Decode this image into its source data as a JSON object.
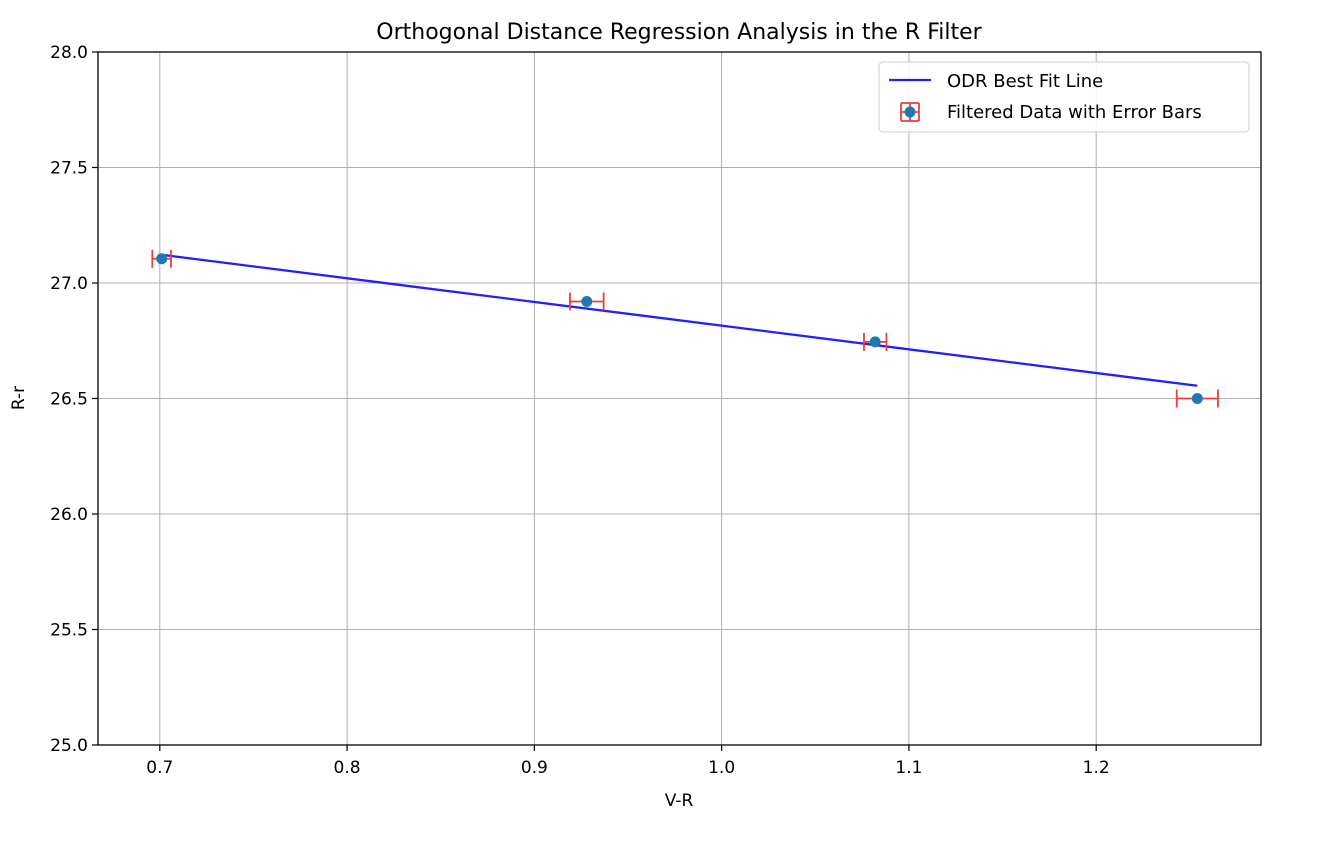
{
  "chart_data": {
    "type": "scatter",
    "title": "Orthogonal Distance Regression Analysis in the R Filter",
    "xlabel": "V-R",
    "ylabel": "R-r",
    "xlim": [
      0.667,
      1.288
    ],
    "ylim": [
      25.0,
      28.0
    ],
    "xticks": [
      0.7,
      0.8,
      0.9,
      1.0,
      1.1,
      1.2
    ],
    "xtick_labels": [
      "0.7",
      "0.8",
      "0.9",
      "1.0",
      "1.1",
      "1.2"
    ],
    "yticks": [
      25.0,
      25.5,
      26.0,
      26.5,
      27.0,
      27.5,
      28.0
    ],
    "ytick_labels": [
      "25.0",
      "25.5",
      "26.0",
      "26.5",
      "27.0",
      "27.5",
      "28.0"
    ],
    "grid": true,
    "legend_position": "top-right",
    "series": [
      {
        "name": "ODR Best Fit Line",
        "kind": "line",
        "color": "#1f1fff",
        "x": [
          0.703,
          1.254
        ],
        "y": [
          27.12,
          26.555
        ]
      },
      {
        "name": "Filtered Data with Error Bars",
        "kind": "errorbar",
        "marker_color": "#1f77b4",
        "errorbar_color": "#f03c3c",
        "x": [
          0.701,
          0.928,
          1.082,
          1.254
        ],
        "y": [
          27.105,
          26.92,
          26.745,
          26.5
        ],
        "xerr": [
          0.005,
          0.009,
          0.006,
          0.011
        ],
        "yerr": [
          0.012,
          0.012,
          0.012,
          0.012
        ]
      }
    ]
  }
}
